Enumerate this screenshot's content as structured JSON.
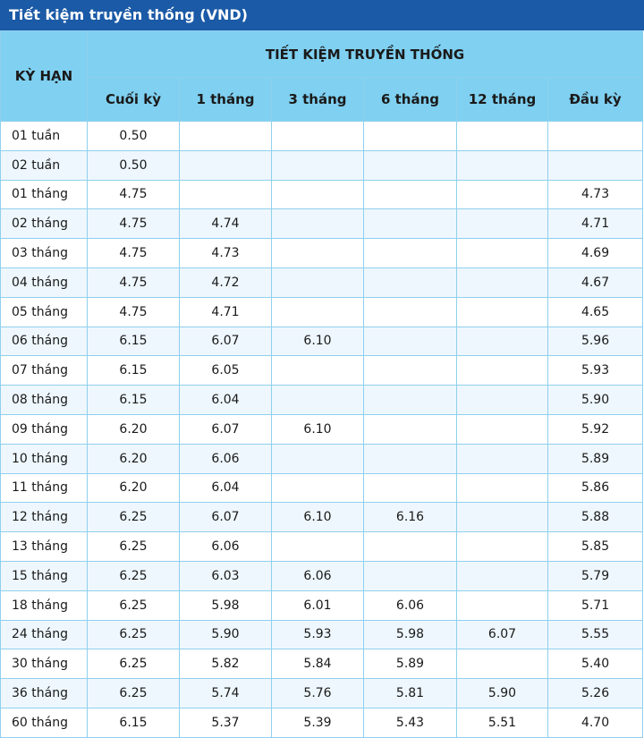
{
  "header": {
    "title": "Tiết kiệm truyền thống (VND)"
  },
  "table": {
    "term_header": "KỲ HẠN",
    "group_header": "TIẾT KIỆM TRUYỀN THỐNG",
    "columns": [
      "Cuối kỳ",
      "1 tháng",
      "3 tháng",
      "6 tháng",
      "12 tháng",
      "Đầu kỳ"
    ],
    "rows": [
      [
        "01 tuần",
        "0.50",
        null,
        null,
        null,
        null,
        null
      ],
      [
        "02 tuần",
        "0.50",
        null,
        null,
        null,
        null,
        null
      ],
      [
        "01 tháng",
        "4.75",
        null,
        null,
        null,
        null,
        "4.73"
      ],
      [
        "02 tháng",
        "4.75",
        "4.74",
        null,
        null,
        null,
        "4.71"
      ],
      [
        "03 tháng",
        "4.75",
        "4.73",
        null,
        null,
        null,
        "4.69"
      ],
      [
        "04 tháng",
        "4.75",
        "4.72",
        null,
        null,
        null,
        "4.67"
      ],
      [
        "05 tháng",
        "4.75",
        "4.71",
        null,
        null,
        null,
        "4.65"
      ],
      [
        "06 tháng",
        "6.15",
        "6.07",
        "6.10",
        null,
        null,
        "5.96"
      ],
      [
        "07 tháng",
        "6.15",
        "6.05",
        null,
        null,
        null,
        "5.93"
      ],
      [
        "08 tháng",
        "6.15",
        "6.04",
        null,
        null,
        null,
        "5.90"
      ],
      [
        "09 tháng",
        "6.20",
        "6.07",
        "6.10",
        null,
        null,
        "5.92"
      ],
      [
        "10 tháng",
        "6.20",
        "6.06",
        null,
        null,
        null,
        "5.89"
      ],
      [
        "11 tháng",
        "6.20",
        "6.04",
        null,
        null,
        null,
        "5.86"
      ],
      [
        "12 tháng",
        "6.25",
        "6.07",
        "6.10",
        "6.16",
        null,
        "5.88"
      ],
      [
        "13 tháng",
        "6.25",
        "6.06",
        null,
        null,
        null,
        "5.85"
      ],
      [
        "15 tháng",
        "6.25",
        "6.03",
        "6.06",
        null,
        null,
        "5.79"
      ],
      [
        "18 tháng",
        "6.25",
        "5.98",
        "6.01",
        "6.06",
        null,
        "5.71"
      ],
      [
        "24 tháng",
        "6.25",
        "5.90",
        "5.93",
        "5.98",
        "6.07",
        "5.55"
      ],
      [
        "30 tháng",
        "6.25",
        "5.82",
        "5.84",
        "5.89",
        null,
        "5.40"
      ],
      [
        "36 tháng",
        "6.25",
        "5.74",
        "5.76",
        "5.81",
        "5.90",
        "5.26"
      ],
      [
        "60 tháng",
        "6.15",
        "5.37",
        "5.39",
        "5.43",
        "5.51",
        "4.70"
      ]
    ]
  }
}
